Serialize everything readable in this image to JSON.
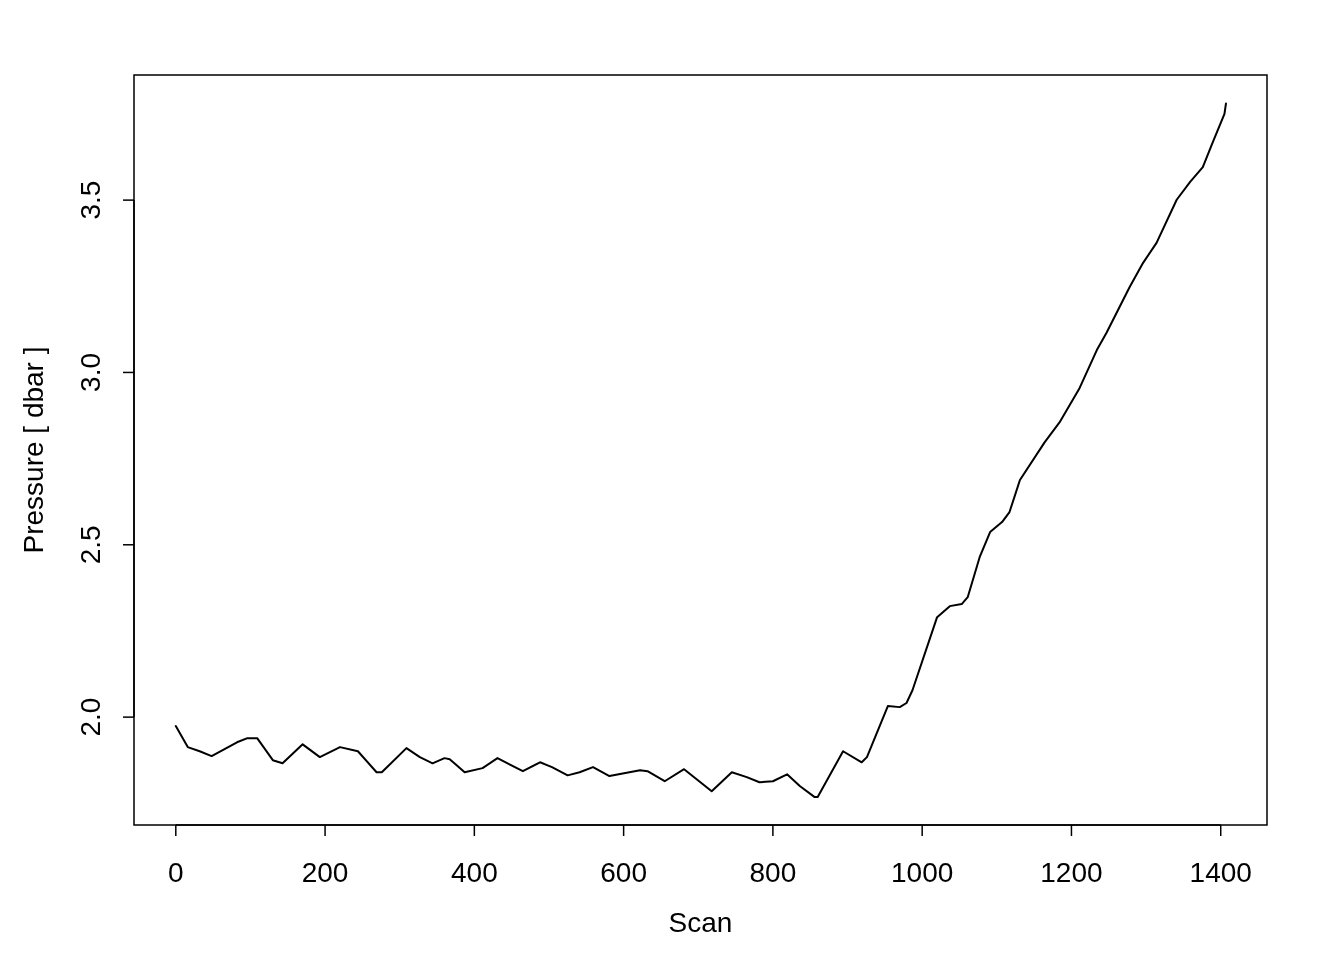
{
  "chart_data": {
    "type": "line",
    "xlabel": "Scan",
    "ylabel": "Pressure [ dbar ]",
    "x": [
      0,
      16,
      32,
      48,
      82,
      96,
      109,
      130,
      143,
      170,
      193,
      220,
      244,
      269,
      276,
      309,
      327,
      344,
      360,
      367,
      387,
      411,
      431,
      465,
      488,
      504,
      525,
      541,
      559,
      581,
      622,
      632,
      655,
      681,
      718,
      745,
      765,
      782,
      800,
      819,
      836,
      856,
      860,
      894,
      919,
      926,
      954,
      970,
      979,
      987,
      1020,
      1037,
      1053,
      1061,
      1077,
      1091,
      1107,
      1117,
      1131,
      1164,
      1184,
      1211,
      1234,
      1247,
      1278,
      1296,
      1314,
      1341,
      1359,
      1376,
      1389,
      1405,
      1407
    ],
    "series": [
      {
        "color": "#000000",
        "values": [
          1.974,
          1.913,
          1.901,
          1.887,
          1.927,
          1.939,
          1.939,
          1.875,
          1.866,
          1.921,
          1.884,
          1.913,
          1.901,
          1.84,
          1.84,
          1.91,
          1.884,
          1.866,
          1.881,
          1.878,
          1.84,
          1.852,
          1.881,
          1.843,
          1.869,
          1.855,
          1.831,
          1.84,
          1.855,
          1.829,
          1.846,
          1.843,
          1.814,
          1.849,
          1.785,
          1.84,
          1.826,
          1.811,
          1.814,
          1.834,
          1.8,
          1.768,
          1.768,
          1.901,
          1.869,
          1.884,
          2.032,
          2.029,
          2.041,
          2.078,
          2.29,
          2.322,
          2.328,
          2.348,
          2.464,
          2.537,
          2.566,
          2.595,
          2.688,
          2.797,
          2.855,
          2.955,
          3.065,
          3.115,
          3.248,
          3.318,
          3.376,
          3.501,
          3.553,
          3.596,
          3.666,
          3.75,
          3.78
        ]
      }
    ],
    "xlim": [
      -56,
      1462
    ],
    "ylim": [
      1.687,
      3.863
    ],
    "xticks": [
      0,
      200,
      400,
      600,
      800,
      1000,
      1200,
      1400
    ],
    "yticks": [
      {
        "value": 2,
        "label": "2.0"
      },
      {
        "value": 2.5,
        "label": "2.5"
      },
      {
        "value": 3,
        "label": "3.0"
      },
      {
        "value": 3.5,
        "label": "3.5"
      }
    ],
    "grid": false,
    "marker": "none",
    "line_style": "solid"
  }
}
